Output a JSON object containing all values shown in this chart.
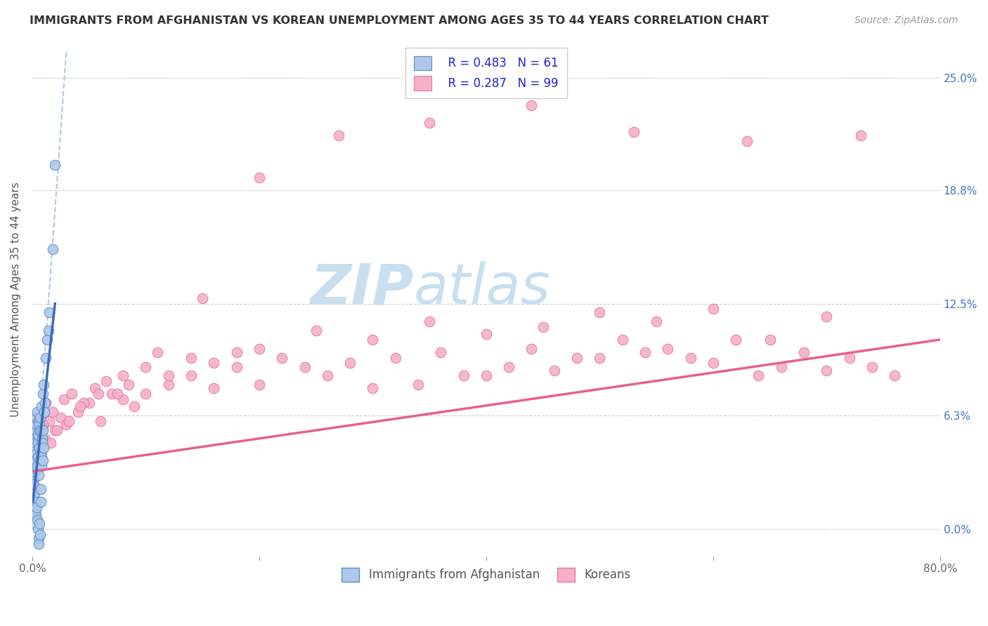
{
  "title": "IMMIGRANTS FROM AFGHANISTAN VS KOREAN UNEMPLOYMENT AMONG AGES 35 TO 44 YEARS CORRELATION CHART",
  "source": "Source: ZipAtlas.com",
  "ylabel": "Unemployment Among Ages 35 to 44 years",
  "ytick_values": [
    0.0,
    6.3,
    12.5,
    18.8,
    25.0
  ],
  "xlim": [
    0.0,
    80.0
  ],
  "ylim": [
    -1.5,
    27.0
  ],
  "legend_r1": "R = 0.483",
  "legend_n1": "N = 61",
  "legend_r2": "R = 0.287",
  "legend_n2": "N = 99",
  "legend_label1": "Immigrants from Afghanistan",
  "legend_label2": "Koreans",
  "color_blue_fill": "#adc8e8",
  "color_pink_fill": "#f5afc8",
  "color_blue_edge": "#5b8fcc",
  "color_pink_edge": "#e87aa8",
  "color_blue_line": "#3a6ab8",
  "color_pink_line": "#e8608a",
  "color_dashed": "#b0c8e0",
  "watermark_zip": "ZIP",
  "watermark_atlas": "atlas",
  "watermark_color": "#cce0f0",
  "af_x": [
    0.05,
    0.1,
    0.12,
    0.15,
    0.18,
    0.2,
    0.22,
    0.25,
    0.28,
    0.3,
    0.32,
    0.35,
    0.38,
    0.4,
    0.42,
    0.45,
    0.48,
    0.5,
    0.52,
    0.55,
    0.58,
    0.6,
    0.62,
    0.65,
    0.68,
    0.7,
    0.72,
    0.75,
    0.78,
    0.8,
    0.85,
    0.9,
    0.95,
    1.0,
    1.1,
    1.2,
    1.3,
    1.5,
    1.8,
    2.0,
    0.08,
    0.13,
    0.17,
    0.23,
    0.27,
    0.33,
    0.37,
    0.43,
    0.47,
    0.53,
    0.57,
    0.63,
    0.67,
    0.73,
    0.77,
    0.83,
    0.87,
    0.93,
    0.97,
    1.05,
    1.4
  ],
  "af_y": [
    3.5,
    2.8,
    4.0,
    3.2,
    5.5,
    4.5,
    6.0,
    5.0,
    4.8,
    5.5,
    3.8,
    6.2,
    4.2,
    5.8,
    3.5,
    6.5,
    4.8,
    5.2,
    4.0,
    6.0,
    3.0,
    5.5,
    4.5,
    5.8,
    3.8,
    6.2,
    4.2,
    5.5,
    4.0,
    6.8,
    5.0,
    7.5,
    5.5,
    8.0,
    7.0,
    9.5,
    10.5,
    12.0,
    15.5,
    20.2,
    2.5,
    1.8,
    2.0,
    1.5,
    1.0,
    0.8,
    1.2,
    0.5,
    0.0,
    -0.5,
    -0.8,
    0.3,
    -0.3,
    1.5,
    2.2,
    3.5,
    4.8,
    3.8,
    4.5,
    6.5,
    11.0
  ],
  "ko_x": [
    0.08,
    0.12,
    0.18,
    0.25,
    0.35,
    0.5,
    0.7,
    1.0,
    1.5,
    2.0,
    2.5,
    3.0,
    4.0,
    5.0,
    6.0,
    7.0,
    8.0,
    9.0,
    10.0,
    12.0,
    14.0,
    16.0,
    18.0,
    20.0,
    22.0,
    24.0,
    26.0,
    28.0,
    30.0,
    32.0,
    34.0,
    36.0,
    38.0,
    40.0,
    42.0,
    44.0,
    46.0,
    48.0,
    50.0,
    52.0,
    54.0,
    56.0,
    58.0,
    60.0,
    62.0,
    64.0,
    66.0,
    68.0,
    70.0,
    72.0,
    74.0,
    76.0,
    0.3,
    0.6,
    0.9,
    1.2,
    1.8,
    2.8,
    3.5,
    4.5,
    5.5,
    6.5,
    7.5,
    8.5,
    10.0,
    12.0,
    14.0,
    16.0,
    18.0,
    20.0,
    25.0,
    30.0,
    35.0,
    40.0,
    45.0,
    50.0,
    55.0,
    60.0,
    65.0,
    70.0,
    0.15,
    0.45,
    0.75,
    1.1,
    1.6,
    2.2,
    3.2,
    4.2,
    5.8,
    8.0,
    11.0,
    15.0,
    20.0,
    27.0,
    35.0,
    44.0,
    53.0,
    63.0,
    73.0
  ],
  "ko_y": [
    3.8,
    4.5,
    5.0,
    3.2,
    5.5,
    4.8,
    5.2,
    5.8,
    6.0,
    5.5,
    6.2,
    5.8,
    6.5,
    7.0,
    6.0,
    7.5,
    7.2,
    6.8,
    7.5,
    8.0,
    8.5,
    7.8,
    9.0,
    8.0,
    9.5,
    9.0,
    8.5,
    9.2,
    7.8,
    9.5,
    8.0,
    9.8,
    8.5,
    8.5,
    9.0,
    10.0,
    8.8,
    9.5,
    9.5,
    10.5,
    9.8,
    10.0,
    9.5,
    9.2,
    10.5,
    8.5,
    9.0,
    9.8,
    8.8,
    9.5,
    9.0,
    8.5,
    5.5,
    6.0,
    5.8,
    7.0,
    6.5,
    7.2,
    7.5,
    7.0,
    7.8,
    8.2,
    7.5,
    8.0,
    9.0,
    8.5,
    9.5,
    9.2,
    9.8,
    10.0,
    11.0,
    10.5,
    11.5,
    10.8,
    11.2,
    12.0,
    11.5,
    12.2,
    10.5,
    11.8,
    2.5,
    3.5,
    4.5,
    5.0,
    4.8,
    5.5,
    6.0,
    6.8,
    7.5,
    8.5,
    9.8,
    12.8,
    19.5,
    21.8,
    22.5,
    23.5,
    22.0,
    21.5,
    21.8
  ],
  "pink_line_x0": 0.0,
  "pink_line_y0": 3.2,
  "pink_line_x1": 80.0,
  "pink_line_y1": 10.5,
  "blue_line_x0": 0.05,
  "blue_line_y0": 1.5,
  "blue_line_x1": 2.0,
  "blue_line_y1": 12.5,
  "dashed_line_x0": 0.0,
  "dashed_line_y0": 0.0,
  "dashed_line_x1": 3.0,
  "dashed_line_y1": 26.5
}
